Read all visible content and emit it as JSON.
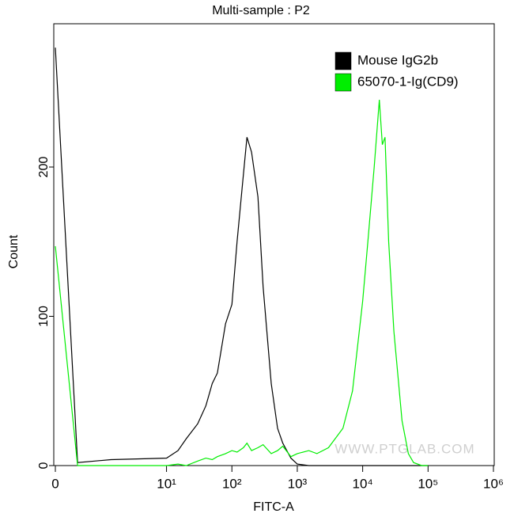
{
  "chart_data": {
    "type": "line",
    "title": "Multi-sample : P2",
    "x_label": "FITC-A",
    "y_label": "Count",
    "xscale": "biexponential",
    "x": [
      0,
      2,
      5,
      10,
      15,
      20,
      30,
      40,
      50,
      60,
      80,
      100,
      120,
      150,
      170,
      200,
      250,
      300,
      400,
      500,
      600,
      800,
      1000,
      1500,
      2000,
      3000,
      5000,
      7000,
      10000,
      12000,
      15000,
      18000,
      20000,
      22000,
      25000,
      30000,
      40000,
      50000,
      60000,
      80000,
      100000
    ],
    "series": [
      {
        "name": "Mouse IgG2b",
        "color": "#000000",
        "values": [
          280,
          2,
          4,
          5,
          10,
          18,
          28,
          40,
          55,
          62,
          95,
          108,
          150,
          195,
          220,
          210,
          180,
          120,
          55,
          25,
          15,
          5,
          1,
          0,
          0,
          0,
          0,
          0,
          0,
          0,
          0,
          0,
          0,
          0,
          0,
          0,
          0,
          0,
          0,
          0,
          0
        ]
      },
      {
        "name": "65070-1-Ig(CD9)",
        "color": "#00ee00",
        "values": [
          147,
          0,
          0,
          0,
          1,
          0,
          3,
          5,
          4,
          6,
          8,
          10,
          9,
          12,
          15,
          10,
          12,
          14,
          8,
          10,
          13,
          6,
          8,
          10,
          8,
          12,
          25,
          50,
          110,
          150,
          200,
          245,
          215,
          220,
          150,
          90,
          30,
          8,
          2,
          0,
          0
        ]
      }
    ],
    "xlim": [
      0,
      1000000
    ],
    "xticks": [
      0,
      {
        "value": 10,
        "label": "10¹"
      },
      {
        "value": 100,
        "label": "10²"
      },
      {
        "value": 1000,
        "label": "10³"
      },
      {
        "value": 10000,
        "label": "10⁴"
      },
      {
        "value": 100000,
        "label": "10⁵"
      },
      {
        "value": 1000000,
        "label": "10⁶"
      }
    ],
    "ylim": [
      0,
      296
    ],
    "yticks": [
      0,
      100,
      200
    ],
    "legend": "top-right",
    "annotation": "WWW.PTGLAB.COM"
  }
}
